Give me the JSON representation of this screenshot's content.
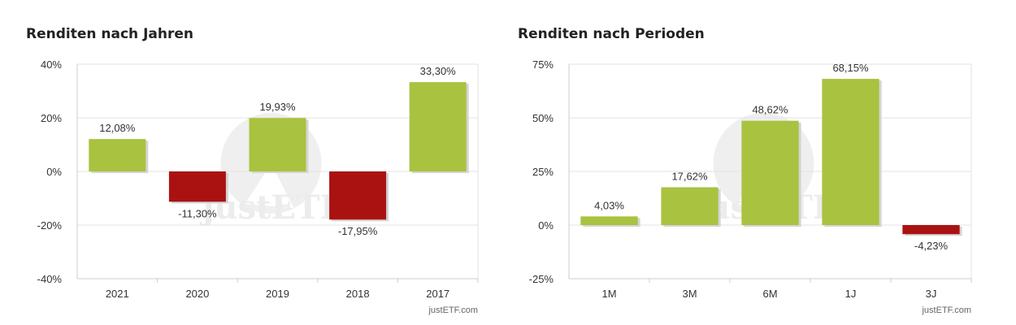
{
  "colors": {
    "positive": "#a9c23f",
    "negative": "#aa1212",
    "grid": "#e3e3e3",
    "axis": "#cccccc",
    "watermark": "#efefef"
  },
  "chart_data": [
    {
      "type": "bar",
      "title": "Renditen nach Jahren",
      "categories": [
        "2021",
        "2020",
        "2019",
        "2018",
        "2017"
      ],
      "values": [
        12.08,
        -11.3,
        19.93,
        -17.95,
        33.3
      ],
      "value_labels": [
        "12,08%",
        "-11,30%",
        "19,93%",
        "-17,95%",
        "33,30%"
      ],
      "ylim": [
        -40,
        40
      ],
      "yticks": [
        40,
        20,
        0,
        -20,
        -40
      ],
      "ytick_labels": [
        "40%",
        "20%",
        "0%",
        "-20%",
        "-40%"
      ],
      "grid": true,
      "source": "justETF.com",
      "watermark": "justETF"
    },
    {
      "type": "bar",
      "title": "Renditen nach Perioden",
      "categories": [
        "1M",
        "3M",
        "6M",
        "1J",
        "3J"
      ],
      "values": [
        4.03,
        17.62,
        48.62,
        68.15,
        -4.23
      ],
      "value_labels": [
        "4,03%",
        "17,62%",
        "48,62%",
        "68,15%",
        "-4,23%"
      ],
      "ylim": [
        -25,
        75
      ],
      "yticks": [
        75,
        50,
        25,
        0,
        -25
      ],
      "ytick_labels": [
        "75%",
        "50%",
        "25%",
        "0%",
        "-25%"
      ],
      "grid": true,
      "source": "justETF.com",
      "watermark": "justETF"
    }
  ]
}
